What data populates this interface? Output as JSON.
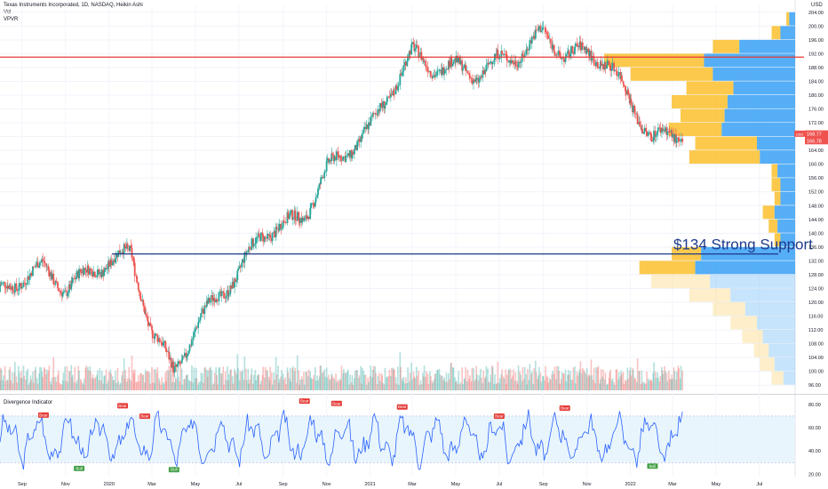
{
  "header": {
    "title": "Texas Instruments Incorporated, 1D, NASDAQ, Heikin Ashi",
    "vol_label": "Vol",
    "vpvr_label": "VPVR",
    "currency": "USD"
  },
  "chart_data": {
    "type": "candlestick",
    "price_axis": {
      "ticks": [
        96,
        100,
        104,
        108,
        112,
        116,
        120,
        124,
        128,
        132,
        136,
        140,
        144,
        148,
        152,
        156,
        160,
        164,
        168,
        172,
        176,
        180,
        184,
        188,
        192,
        196,
        200,
        204
      ],
      "ylim": [
        94,
        206
      ]
    },
    "time_axis": {
      "labels": [
        "Sep",
        "Nov",
        "2020",
        "Mar",
        "May",
        "Jul",
        "Sep",
        "Nov",
        "2021",
        "Mar",
        "May",
        "Jul",
        "Sep",
        "Nov",
        "2022",
        "Mar",
        "May",
        "Jul"
      ]
    },
    "price_path": {
      "x": [
        "2019-08",
        "2019-09",
        "2019-10",
        "2019-11",
        "2019-12",
        "2020-01",
        "2020-02",
        "2020-03",
        "2020-04",
        "2020-05",
        "2020-06",
        "2020-07",
        "2020-08",
        "2020-09",
        "2020-10",
        "2020-11",
        "2020-12",
        "2021-01",
        "2021-02",
        "2021-03",
        "2021-04",
        "2021-05",
        "2021-06",
        "2021-07",
        "2021-08",
        "2021-09",
        "2021-10",
        "2021-11",
        "2021-12",
        "2022-01",
        "2022-02",
        "2022-03"
      ],
      "close": [
        123,
        127,
        130,
        124,
        128,
        132,
        134,
        112,
        100,
        112,
        122,
        128,
        140,
        142,
        145,
        158,
        164,
        170,
        182,
        192,
        188,
        188,
        186,
        190,
        192,
        198,
        192,
        192,
        190,
        178,
        168,
        168
      ]
    },
    "horizontal_levels": [
      {
        "price": 134,
        "color": "#1e3a8a",
        "label": "$134 Strong Support"
      },
      {
        "price": 191,
        "color": "#e53935",
        "label": ""
      }
    ],
    "price_badges": [
      {
        "price": 168.77,
        "text": "168.77",
        "color": "#ef5350"
      },
      {
        "price": 166.78,
        "text": "166.78",
        "color": "#ef5350"
      },
      {
        "price": 168.7,
        "text": "USD",
        "color": "#ef5350"
      }
    ],
    "volume_profile": {
      "bins": [
        {
          "price": 98,
          "up": 8,
          "down": 8
        },
        {
          "price": 102,
          "up": 14,
          "down": 10
        },
        {
          "price": 106,
          "up": 18,
          "down": 10
        },
        {
          "price": 110,
          "up": 22,
          "down": 14
        },
        {
          "price": 114,
          "up": 26,
          "down": 18
        },
        {
          "price": 118,
          "up": 34,
          "down": 22
        },
        {
          "price": 122,
          "up": 44,
          "down": 28
        },
        {
          "price": 126,
          "up": 58,
          "down": 40
        },
        {
          "price": 130,
          "up": 68,
          "down": 38
        },
        {
          "price": 134,
          "up": 64,
          "down": 20
        },
        {
          "price": 138,
          "up": 10,
          "down": 4
        },
        {
          "price": 142,
          "up": 12,
          "down": 6
        },
        {
          "price": 146,
          "up": 14,
          "down": 8
        },
        {
          "price": 150,
          "up": 10,
          "down": 4
        },
        {
          "price": 154,
          "up": 10,
          "down": 6
        },
        {
          "price": 158,
          "up": 12,
          "down": 4
        },
        {
          "price": 162,
          "up": 24,
          "down": 48
        },
        {
          "price": 166,
          "up": 26,
          "down": 42
        },
        {
          "price": 170,
          "up": 50,
          "down": 36
        },
        {
          "price": 174,
          "up": 48,
          "down": 30
        },
        {
          "price": 178,
          "up": 46,
          "down": 38
        },
        {
          "price": 182,
          "up": 42,
          "down": 32
        },
        {
          "price": 186,
          "up": 56,
          "down": 56
        },
        {
          "price": 190,
          "up": 62,
          "down": 68
        },
        {
          "price": 194,
          "up": 38,
          "down": 18
        },
        {
          "price": 198,
          "up": 10,
          "down": 6
        },
        {
          "price": 202,
          "up": 4,
          "down": 2
        }
      ],
      "up_color": "#42a5f5",
      "down_color": "#fbc02d"
    },
    "indicator": {
      "name": "Divergence Indicator",
      "ticks": [
        20,
        40,
        60,
        80
      ],
      "band": [
        30,
        70
      ],
      "ylim": [
        18,
        86
      ],
      "labels": [
        {
          "text": "Bear",
          "x": "2019-10-01",
          "value": 67
        },
        {
          "text": "Bull",
          "x": "2019-11-20",
          "value": 28
        },
        {
          "text": "Bear",
          "x": "2020-01-20",
          "value": 75
        },
        {
          "text": "Bear",
          "x": "2020-02-20",
          "value": 66
        },
        {
          "text": "Bull",
          "x": "2020-04-01",
          "value": 27
        },
        {
          "text": "Bear",
          "x": "2020-10-01",
          "value": 79
        },
        {
          "text": "Bear",
          "x": "2020-11-15",
          "value": 77
        },
        {
          "text": "Bear",
          "x": "2021-02-15",
          "value": 74
        },
        {
          "text": "Bear",
          "x": "2021-07-01",
          "value": 66
        },
        {
          "text": "Bear",
          "x": "2021-10-01",
          "value": 73
        },
        {
          "text": "Bull",
          "x": "2022-02-01",
          "value": 30
        }
      ],
      "up_label_color": "#e53935",
      "down_label_color": "#43a047",
      "line_color": "#2962ff"
    }
  }
}
